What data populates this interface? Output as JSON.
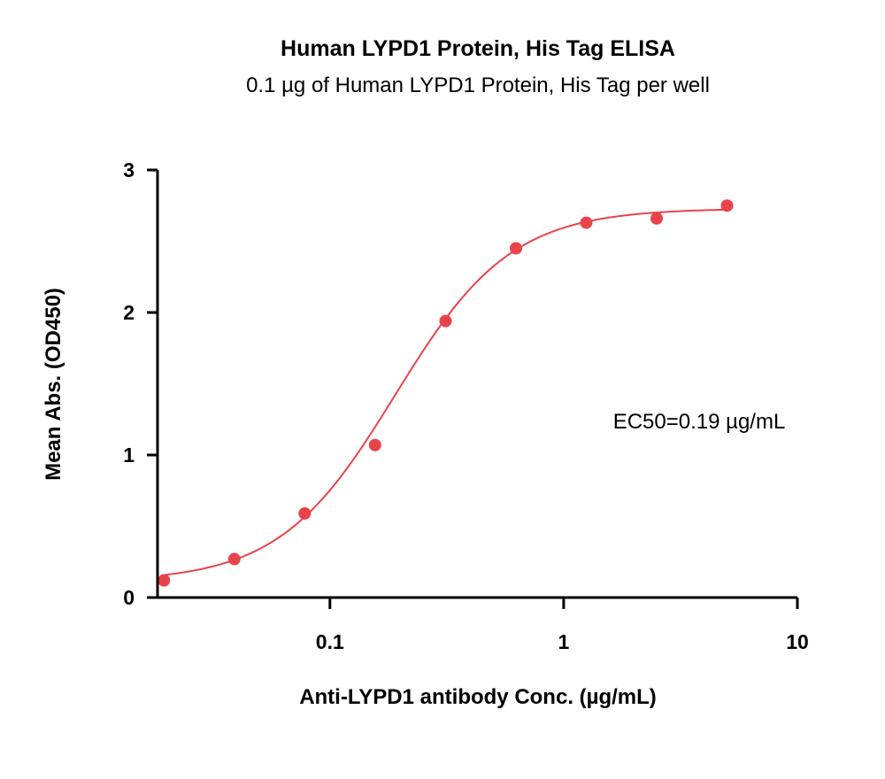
{
  "chart_data": {
    "type": "scatter",
    "title": "Human LYPD1 Protein, His Tag ELISA",
    "subtitle": "0.1 µg of Human LYPD1 Protein, His Tag per well",
    "xlabel": "Anti-LYPD1 antibody Conc. (µg/mL)",
    "ylabel": "Mean Abs. (OD450)",
    "x_scale": "log",
    "xlim": [
      0.0183,
      10
    ],
    "ylim": [
      0,
      3
    ],
    "x_ticks": [
      0.1,
      1,
      10
    ],
    "x_tick_labels": [
      "0.1",
      "1",
      "10"
    ],
    "y_ticks": [
      0,
      1,
      2,
      3
    ],
    "y_tick_labels": [
      "0",
      "1",
      "2",
      "3"
    ],
    "grid": false,
    "series": [
      {
        "color": "#e8434b",
        "x": [
          0.0195,
          0.039,
          0.078,
          0.156,
          0.3125,
          0.625,
          1.25,
          2.5,
          5
        ],
        "y": [
          0.12,
          0.27,
          0.59,
          1.07,
          1.94,
          2.45,
          2.63,
          2.66,
          2.75
        ],
        "fit": {
          "model": "4PL",
          "bottom": 0.11,
          "top": 2.73,
          "ec50": 0.19,
          "hill": 1.75,
          "x_range": [
            0.0195,
            5
          ]
        }
      }
    ],
    "annotations": [
      {
        "text": "EC50=0.19 µg/mL"
      }
    ]
  }
}
